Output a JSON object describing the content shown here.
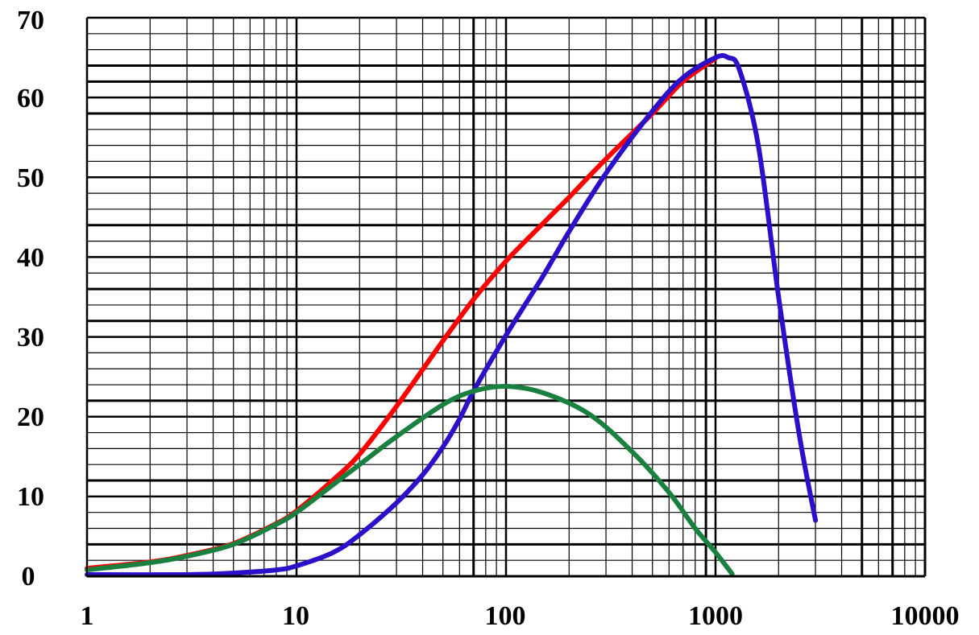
{
  "chart_data": {
    "type": "line",
    "title": "",
    "xlabel": "",
    "ylabel": "",
    "xscale": "log",
    "xlim": [
      1,
      10000
    ],
    "ylim": [
      0,
      70
    ],
    "grid": true,
    "x_tick_labels": [
      "1",
      "10",
      "100",
      "1000",
      "10000"
    ],
    "y_tick_labels": [
      "0",
      "10",
      "20",
      "30",
      "40",
      "50",
      "60",
      "70"
    ],
    "series": [
      {
        "name": "red",
        "color": "#ff0000",
        "x": [
          1,
          2,
          3,
          5,
          8,
          10,
          15,
          20,
          30,
          50,
          70,
          100,
          150,
          200,
          300,
          500,
          700,
          1000
        ],
        "y": [
          1,
          1.8,
          2.6,
          4.1,
          6.6,
          8.2,
          12.1,
          15.3,
          21.3,
          29.5,
          34.7,
          39.5,
          44.2,
          47.5,
          52.3,
          58.0,
          62.0,
          64.9
        ]
      },
      {
        "name": "blue",
        "color": "#2a10c8",
        "x": [
          1,
          3,
          5,
          8,
          10,
          15,
          20,
          30,
          40,
          50,
          60,
          70,
          100,
          150,
          200,
          300,
          500,
          700,
          1000,
          1150,
          1300,
          1600,
          2000,
          2500,
          3000
        ],
        "y": [
          0.2,
          0.2,
          0.4,
          0.8,
          1.3,
          3.0,
          5.2,
          9.2,
          12.7,
          16.2,
          19.7,
          23.2,
          30.2,
          37.6,
          43.2,
          50.5,
          58.3,
          62.5,
          65.0,
          65.0,
          63.5,
          54.0,
          35.0,
          18.0,
          7.0
        ]
      },
      {
        "name": "green",
        "color": "#1a8040",
        "x": [
          1,
          2,
          3,
          5,
          8,
          10,
          15,
          20,
          30,
          50,
          70,
          100,
          150,
          250,
          400,
          600,
          800,
          1000,
          1200
        ],
        "y": [
          0.8,
          1.7,
          2.5,
          4.0,
          6.5,
          8.0,
          11.5,
          14.0,
          17.5,
          21.5,
          23.2,
          23.8,
          23.0,
          20.3,
          15.6,
          10.5,
          6.0,
          3.0,
          0.3
        ]
      }
    ]
  }
}
